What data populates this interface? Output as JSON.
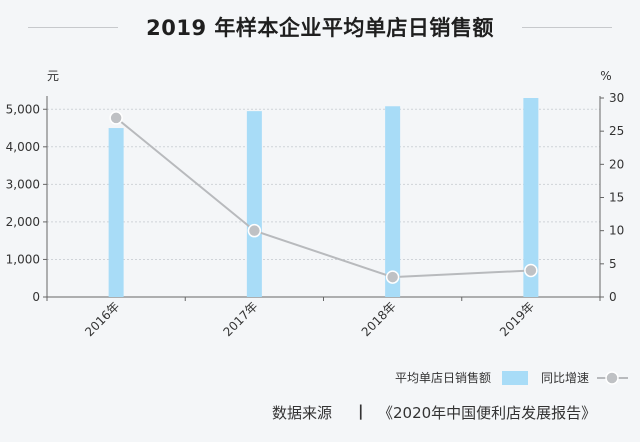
{
  "title": "2019 年样本企业平均单店日销售额",
  "chart_data": {
    "type": "bar",
    "categories": [
      "2016年",
      "2017年",
      "2018年",
      "2019年"
    ],
    "series": [
      {
        "name": "平均单店日销售额",
        "type": "bar",
        "axis": "left",
        "values": [
          4500,
          4950,
          5080,
          5300
        ],
        "color": "#a8dcf7"
      },
      {
        "name": "同比增速",
        "type": "line",
        "axis": "right",
        "values": [
          27,
          10,
          3,
          4
        ],
        "color": "#b8babd"
      }
    ],
    "y_left": {
      "unit": "元",
      "ticks": [
        0,
        1000,
        2000,
        3000,
        4000,
        5000
      ],
      "tick_labels": [
        "0",
        "1,000",
        "2,000",
        "3,000",
        "4,000",
        "5,000"
      ],
      "range": [
        0,
        5300
      ]
    },
    "y_right": {
      "unit": "%",
      "ticks": [
        0,
        5,
        10,
        15,
        20,
        25,
        30
      ],
      "range": [
        0,
        30
      ]
    },
    "grid": true,
    "legend": "bottom-right"
  },
  "footer": {
    "source_label": "数据来源",
    "separator": "|",
    "source": "《2020年中国便利店发展报告》"
  }
}
